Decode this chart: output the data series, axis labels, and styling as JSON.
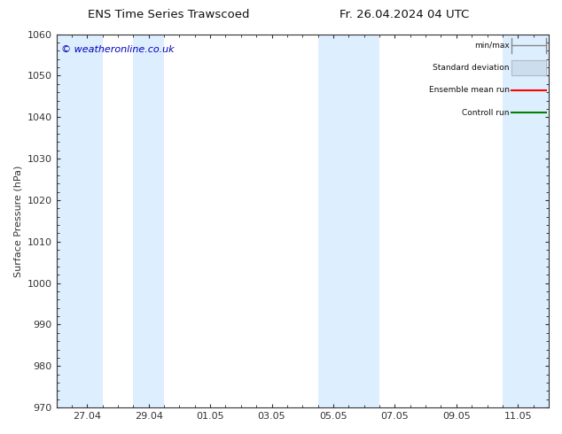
{
  "title_left": "ENS Time Series Trawscoed",
  "title_right": "Fr. 26.04.2024 04 UTC",
  "ylabel": "Surface Pressure (hPa)",
  "ylim": [
    970,
    1060
  ],
  "yticks": [
    970,
    980,
    990,
    1000,
    1010,
    1020,
    1030,
    1040,
    1050,
    1060
  ],
  "xlim": [
    0,
    16
  ],
  "xtick_labels": [
    "27.04",
    "29.04",
    "01.05",
    "03.05",
    "05.05",
    "07.05",
    "09.05",
    "11.05"
  ],
  "xtick_positions": [
    1.0,
    3.0,
    5.0,
    7.0,
    9.0,
    11.0,
    13.0,
    15.0
  ],
  "shaded_bands": [
    {
      "x_start": 0.0,
      "x_end": 1.5
    },
    {
      "x_start": 2.5,
      "x_end": 3.5
    },
    {
      "x_start": 8.5,
      "x_end": 10.5
    },
    {
      "x_start": 14.5,
      "x_end": 16.0
    }
  ],
  "shade_color": "#ddeeff",
  "bg_color": "#ffffff",
  "watermark": "© weatheronline.co.uk",
  "watermark_color": "#0000bb",
  "legend_items": [
    {
      "label": "min/max",
      "color": "#bbccdd",
      "type": "minmax"
    },
    {
      "label": "Standard deviation",
      "color": "#ccddee",
      "type": "band"
    },
    {
      "label": "Ensemble mean run",
      "color": "#ff0000",
      "type": "line"
    },
    {
      "label": "Controll run",
      "color": "#008000",
      "type": "line"
    }
  ],
  "axis_color": "#333333",
  "tick_color": "#333333",
  "font_size": 8,
  "title_font_size": 9.5
}
